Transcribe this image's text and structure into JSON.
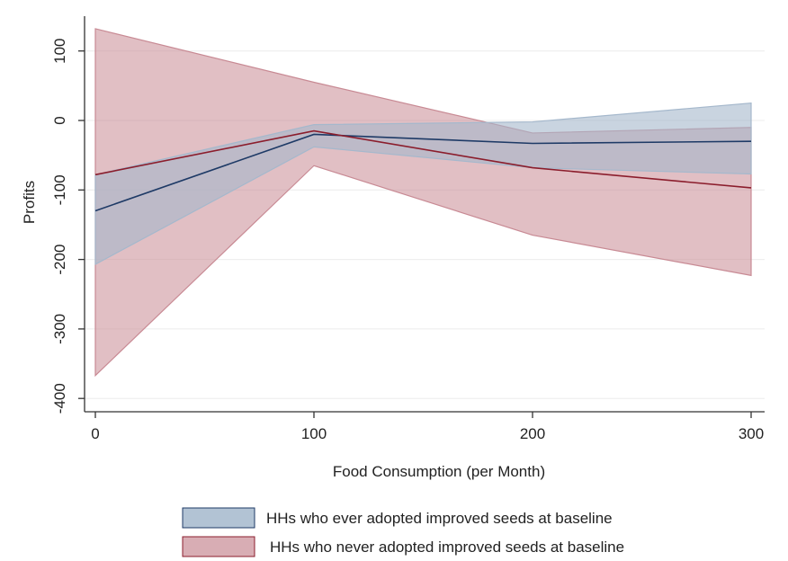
{
  "chart_data": {
    "type": "area",
    "title": "",
    "xlabel": "Food Consumption (per Month)",
    "ylabel": "Profits",
    "xlim": [
      0,
      300
    ],
    "ylim": [
      -400,
      150
    ],
    "x_ticks": [
      "0",
      "100",
      "200",
      "300"
    ],
    "y_ticks": [
      "-400",
      "-300",
      "-200",
      "-100",
      "0",
      "100"
    ],
    "grid": true,
    "legend_position": "bottom",
    "x": [
      0,
      100,
      200,
      300
    ],
    "series": [
      {
        "name": "HHs who ever adopted improved seeds at baseline",
        "estimate": [
          -130,
          -20,
          -33,
          -30
        ],
        "ci_lower": [
          -207,
          -38,
          -68,
          -77
        ],
        "ci_upper": [
          -78,
          -6,
          -2,
          25
        ],
        "fill_color": "#a5b8cc",
        "line_color": "#1e3a66"
      },
      {
        "name": "HHs who never adopted improved seeds at baseline",
        "estimate": [
          -78,
          -15,
          -68,
          -97
        ],
        "ci_lower": [
          -367,
          -65,
          -165,
          -223
        ],
        "ci_upper": [
          132,
          55,
          -18,
          -10
        ],
        "fill_color": "#c88a94",
        "line_color": "#8b1d2c"
      }
    ]
  }
}
